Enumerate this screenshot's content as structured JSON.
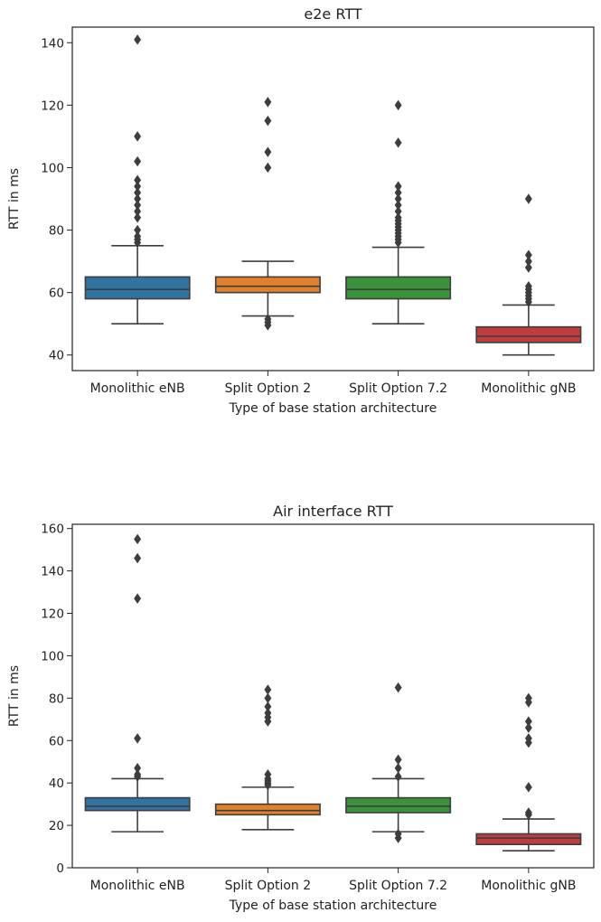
{
  "chart_data": [
    {
      "type": "box",
      "title": "e2e RTT",
      "xlabel": "Type of base station architecture",
      "ylabel": "RTT in ms",
      "ylim": [
        35,
        145
      ],
      "yticks": [
        40,
        60,
        80,
        100,
        120,
        140
      ],
      "categories": [
        "Monolithic eNB",
        "Split Option 2",
        "Split Option 7.2",
        "Monolithic gNB"
      ],
      "boxes": [
        {
          "name": "Monolithic eNB",
          "color": "#3274a1",
          "whisker_low": 50,
          "q1": 58,
          "median": 61,
          "q3": 65,
          "whisker_high": 75,
          "outliers": [
            141,
            110,
            102,
            96,
            94,
            92,
            90,
            88,
            86,
            84,
            80,
            78,
            77,
            76
          ]
        },
        {
          "name": "Split Option 2",
          "color": "#e1812c",
          "whisker_low": 52.5,
          "q1": 60,
          "median": 62,
          "q3": 65,
          "whisker_high": 70,
          "outliers": [
            121,
            115,
            105,
            100,
            51.5,
            50.5,
            49.5
          ]
        },
        {
          "name": "Split Option 7.2",
          "color": "#3a923a",
          "whisker_low": 50,
          "q1": 58,
          "median": 61,
          "q3": 65,
          "whisker_high": 74.5,
          "outliers": [
            120,
            108,
            94,
            92,
            90,
            88,
            86,
            84,
            83,
            82,
            81,
            80,
            79,
            78,
            77,
            76
          ]
        },
        {
          "name": "Monolithic gNB",
          "color": "#c03d3e",
          "whisker_low": 40,
          "q1": 44,
          "median": 46,
          "q3": 49,
          "whisker_high": 56,
          "outliers": [
            90,
            72,
            70,
            68,
            62,
            61,
            60,
            59,
            58,
            57
          ]
        }
      ]
    },
    {
      "type": "box",
      "title": "Air interface RTT",
      "xlabel": "Type of base station architecture",
      "ylabel": "RTT in ms",
      "ylim": [
        0,
        162
      ],
      "yticks": [
        0,
        20,
        40,
        60,
        80,
        100,
        120,
        140,
        160
      ],
      "categories": [
        "Monolithic eNB",
        "Split Option 2",
        "Split Option 7.2",
        "Monolithic gNB"
      ],
      "boxes": [
        {
          "name": "Monolithic eNB",
          "color": "#3274a1",
          "whisker_low": 17,
          "q1": 27,
          "median": 29,
          "q3": 33,
          "whisker_high": 42,
          "outliers": [
            155,
            146,
            127,
            61,
            47,
            44,
            43
          ]
        },
        {
          "name": "Split Option 2",
          "color": "#e1812c",
          "whisker_low": 18,
          "q1": 25,
          "median": 27,
          "q3": 30,
          "whisker_high": 38,
          "outliers": [
            84,
            80,
            76,
            73,
            71,
            69,
            44,
            42,
            41,
            40,
            39
          ]
        },
        {
          "name": "Split Option 7.2",
          "color": "#3a923a",
          "whisker_low": 17,
          "q1": 26,
          "median": 29,
          "q3": 33,
          "whisker_high": 42,
          "outliers": [
            85,
            51,
            47,
            43,
            16,
            14
          ]
        },
        {
          "name": "Monolithic gNB",
          "color": "#c03d3e",
          "whisker_low": 8,
          "q1": 11,
          "median": 14,
          "q3": 16,
          "whisker_high": 23,
          "outliers": [
            80,
            78,
            69,
            66,
            61,
            59,
            38,
            26,
            25
          ]
        }
      ]
    }
  ]
}
